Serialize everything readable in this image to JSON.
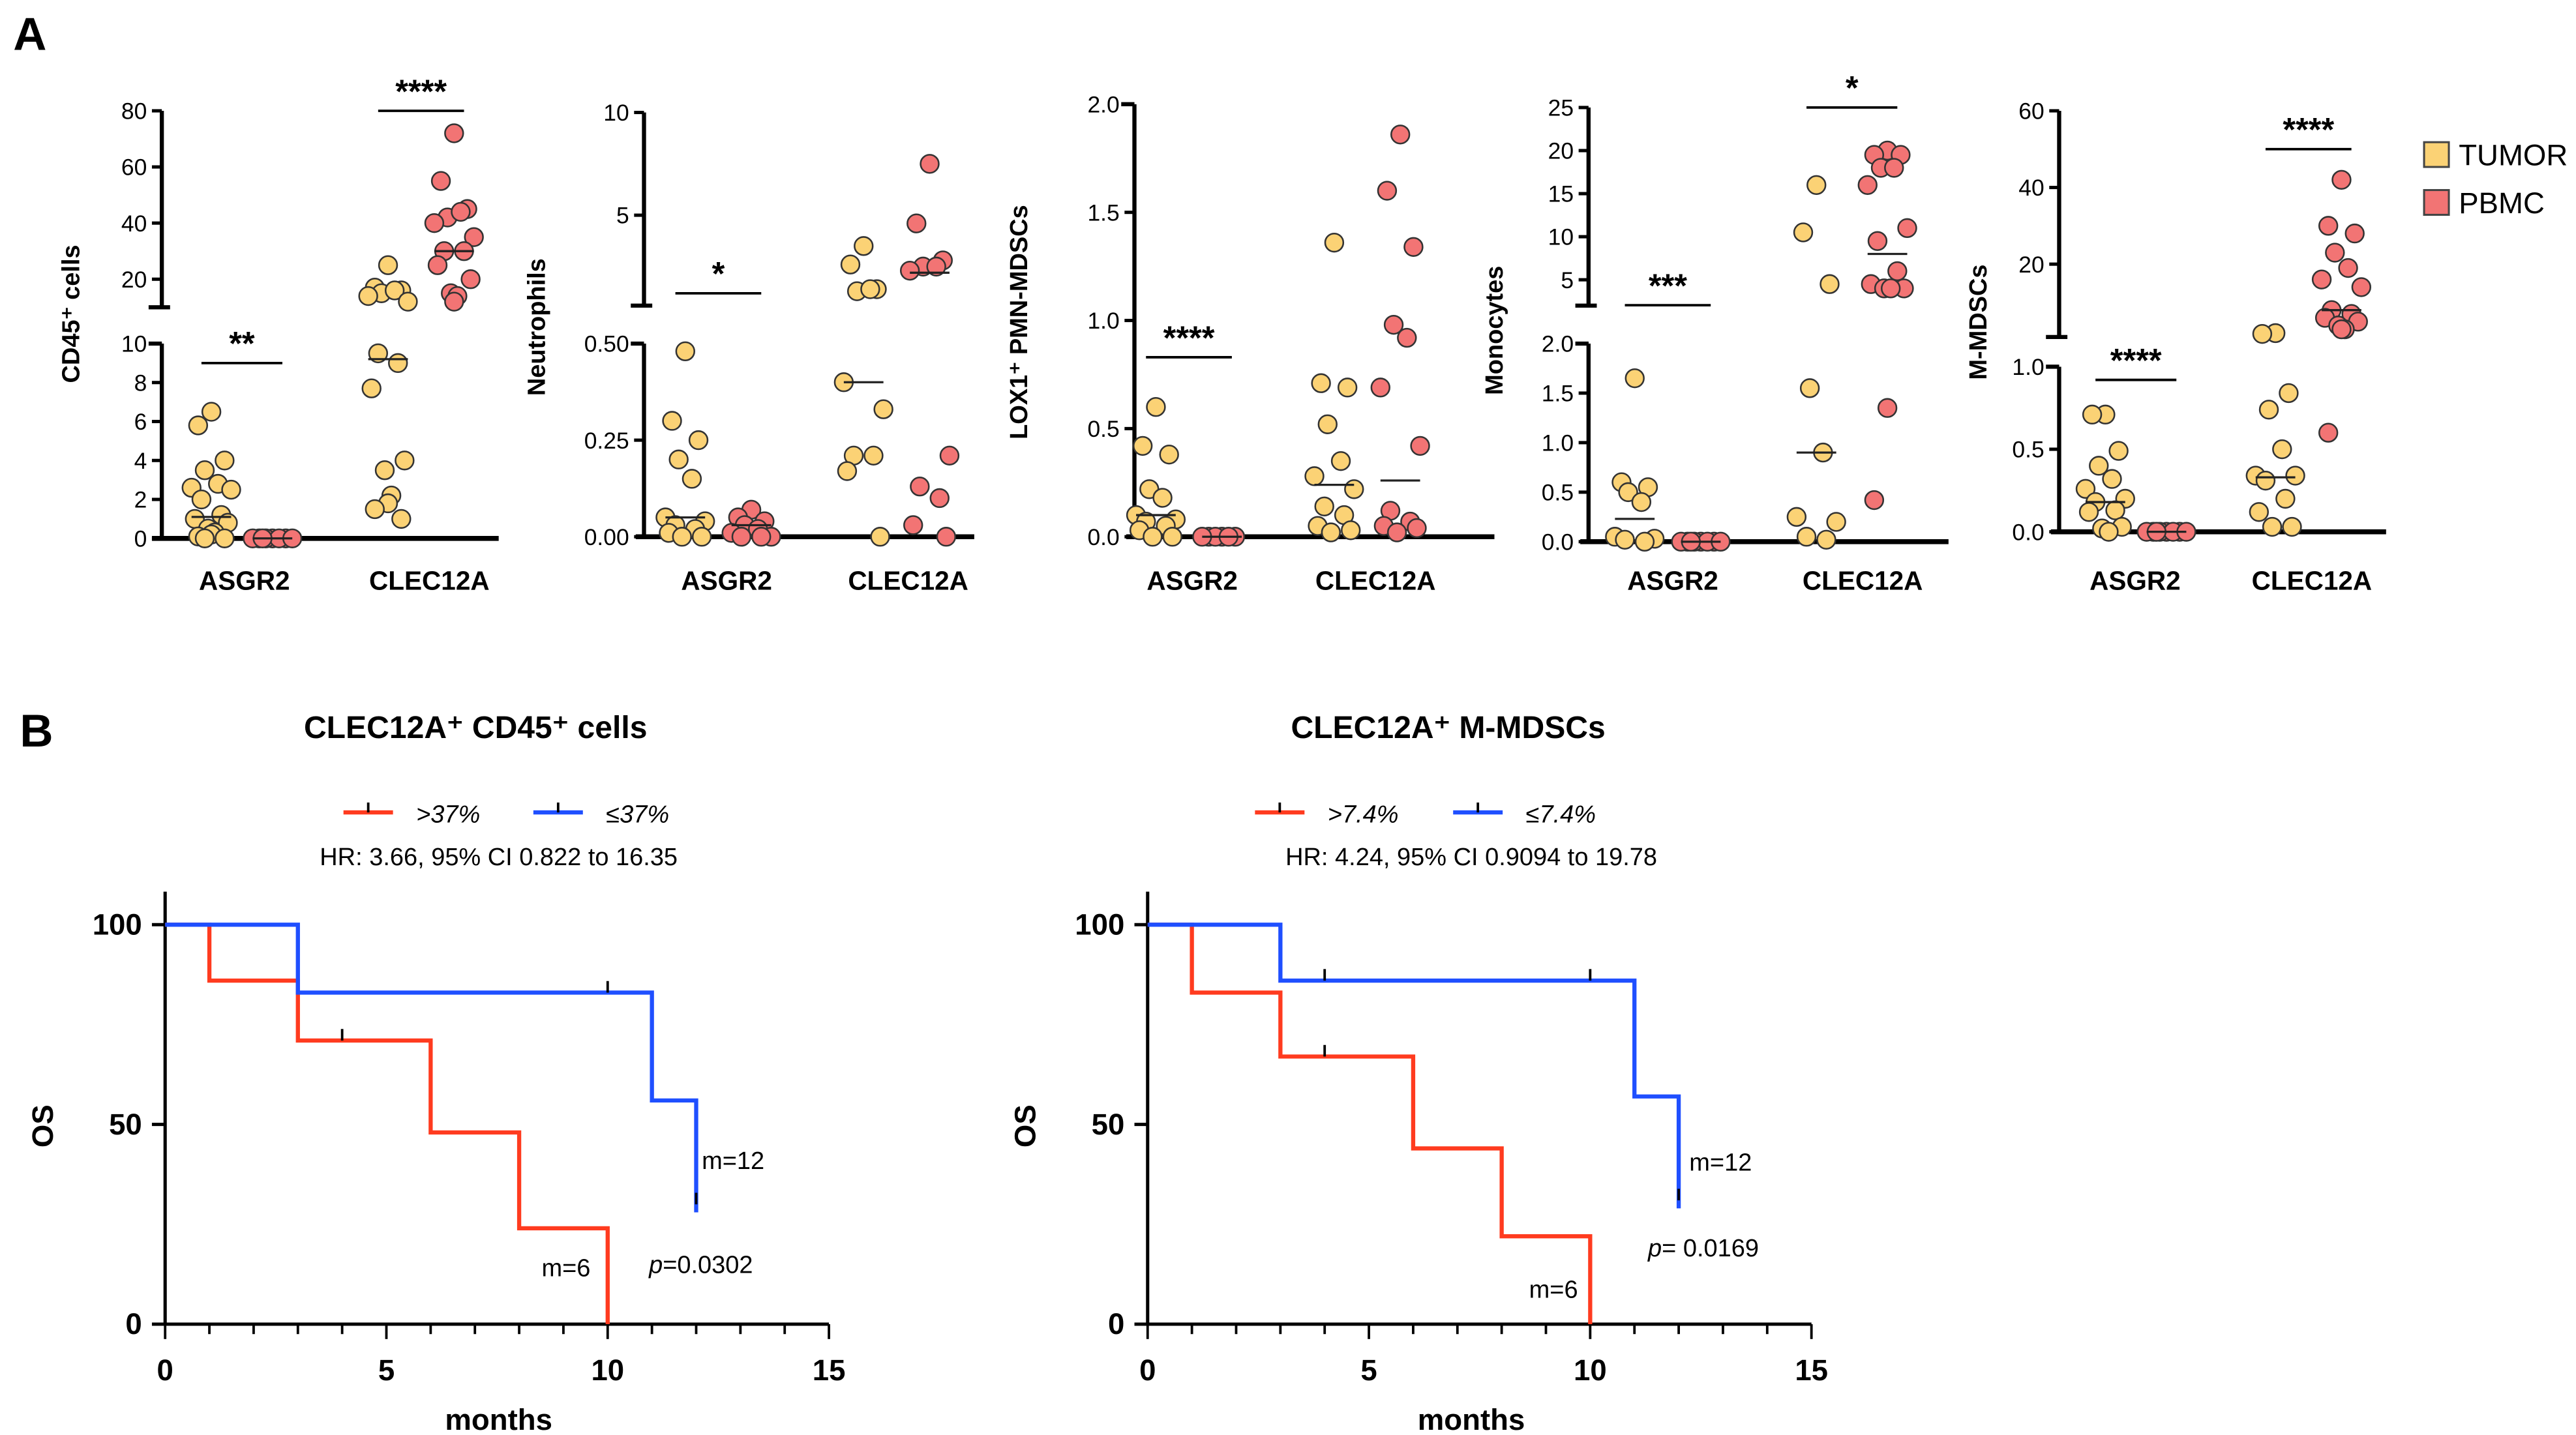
{
  "panel_labels": {
    "a": "A",
    "b": "B"
  },
  "colors": {
    "tumor": "#FBD275",
    "pbmc": "#F27474",
    "km_red": "#FF3B1F",
    "km_blue": "#1F4FFF"
  },
  "legend": {
    "tumor": "TUMOR",
    "pbmc": "PBMC"
  },
  "chart_data": [
    {
      "type": "scatter",
      "ylabel": "CD45⁺ cells",
      "categories": [
        "ASGR2",
        "CLEC12A"
      ],
      "lower_range": [
        0,
        10
      ],
      "upper_range": [
        10,
        80
      ],
      "lower_ticks": [
        "0",
        "2",
        "4",
        "6",
        "8",
        "10"
      ],
      "upper_ticks": [
        "20",
        "40",
        "60",
        "80"
      ],
      "groups": [
        {
          "category": "ASGR2",
          "series": "TUMOR",
          "values": [
            6.5,
            5.8,
            4.0,
            3.5,
            2.8,
            2.6,
            2.5,
            2.0,
            1.2,
            1.0,
            0.8,
            0.5,
            0.3,
            0.2,
            0.1,
            0,
            0
          ],
          "median": 1.1
        },
        {
          "category": "ASGR2",
          "series": "PBMC",
          "values": [
            0,
            0,
            0,
            0,
            0,
            0,
            0,
            0
          ],
          "median": 0
        },
        {
          "category": "CLEC12A",
          "series": "TUMOR",
          "values": [
            25,
            17,
            16,
            15,
            16,
            14,
            12,
            9.5,
            9.0,
            7.7,
            4.0,
            3.5,
            2.2,
            1.8,
            1.5,
            1.0
          ],
          "median": 9.2
        },
        {
          "category": "CLEC12A",
          "series": "PBMC",
          "values": [
            72,
            55,
            45,
            42,
            44,
            40,
            35,
            30,
            30,
            25,
            20,
            15,
            14,
            12
          ],
          "median": 30
        }
      ],
      "significance": [
        {
          "category": "ASGR2",
          "label": "**",
          "y": 9.0
        },
        {
          "category": "CLEC12A",
          "label": "****",
          "y": 80
        }
      ]
    },
    {
      "type": "scatter",
      "ylabel": "Neutrophils",
      "categories": [
        "ASGR2",
        "CLEC12A"
      ],
      "lower_range": [
        0,
        0.5
      ],
      "upper_range": [
        0.6,
        10
      ],
      "lower_ticks": [
        "0.00",
        "0.25",
        "0.50"
      ],
      "upper_ticks": [
        "5",
        "10"
      ],
      "groups": [
        {
          "category": "ASGR2",
          "series": "TUMOR",
          "values": [
            0.48,
            0.3,
            0.25,
            0.2,
            0.15,
            0.05,
            0.04,
            0.03,
            0.02,
            0.01,
            0,
            0
          ],
          "median": 0.05
        },
        {
          "category": "ASGR2",
          "series": "PBMC",
          "values": [
            0.07,
            0.05,
            0.04,
            0.03,
            0.02,
            0.01,
            0,
            0,
            0
          ],
          "median": 0.03
        },
        {
          "category": "CLEC12A",
          "series": "TUMOR",
          "values": [
            3.5,
            2.6,
            1.4,
            1.3,
            1.4,
            0.4,
            0.33,
            0.21,
            0.21,
            0.17,
            0
          ],
          "median": 0.4
        },
        {
          "category": "CLEC12A",
          "series": "PBMC",
          "values": [
            7.5,
            4.6,
            2.8,
            2.5,
            2.5,
            2.3,
            0.21,
            0.13,
            0.1,
            0.03,
            0
          ],
          "median": 2.2
        }
      ],
      "significance": [
        {
          "category": "ASGR2",
          "label": "*",
          "y": 1.2
        }
      ]
    },
    {
      "type": "scatter",
      "ylabel": "LOX1⁺ PMN-MDSCs",
      "categories": [
        "ASGR2",
        "CLEC12A"
      ],
      "lower_range": [
        0,
        2
      ],
      "upper_range": null,
      "lower_ticks": [
        "0.0",
        "0.5",
        "1.0",
        "1.5",
        "2.0"
      ],
      "upper_ticks": [],
      "groups": [
        {
          "category": "ASGR2",
          "series": "TUMOR",
          "values": [
            0.6,
            0.42,
            0.38,
            0.22,
            0.18,
            0.1,
            0.08,
            0.07,
            0.05,
            0.03,
            0,
            0
          ],
          "median": 0.1
        },
        {
          "category": "ASGR2",
          "series": "PBMC",
          "values": [
            0,
            0,
            0,
            0,
            0,
            0
          ],
          "median": 0
        },
        {
          "category": "CLEC12A",
          "series": "TUMOR",
          "values": [
            1.36,
            0.71,
            0.69,
            0.52,
            0.35,
            0.28,
            0.22,
            0.14,
            0.1,
            0.05,
            0.03,
            0.02
          ],
          "median": 0.24
        },
        {
          "category": "CLEC12A",
          "series": "PBMC",
          "values": [
            1.86,
            1.6,
            1.34,
            0.98,
            0.92,
            0.69,
            0.42,
            0.12,
            0.07,
            0.05,
            0.04,
            0.02
          ],
          "median": 0.26
        }
      ],
      "significance": [
        {
          "category": "ASGR2",
          "label": "****",
          "y": 0.83
        }
      ]
    },
    {
      "type": "scatter",
      "ylabel": "Monocytes",
      "categories": [
        "ASGR2",
        "CLEC12A"
      ],
      "lower_range": [
        0,
        2
      ],
      "upper_range": [
        2,
        25
      ],
      "lower_ticks": [
        "0.0",
        "0.5",
        "1.0",
        "1.5",
        "2.0"
      ],
      "upper_ticks": [
        "5",
        "10",
        "15",
        "20",
        "25"
      ],
      "groups": [
        {
          "category": "ASGR2",
          "series": "TUMOR",
          "values": [
            1.65,
            0.6,
            0.55,
            0.5,
            0.4,
            0.05,
            0.03,
            0.02,
            0
          ],
          "median": 0.23
        },
        {
          "category": "ASGR2",
          "series": "PBMC",
          "values": [
            0,
            0,
            0,
            0,
            0,
            0,
            0,
            0
          ],
          "median": 0
        },
        {
          "category": "CLEC12A",
          "series": "TUMOR",
          "values": [
            16,
            10.5,
            4.5,
            1.55,
            0.9,
            0.25,
            0.2,
            0.05,
            0.02
          ],
          "median": 0.9
        },
        {
          "category": "CLEC12A",
          "series": "PBMC",
          "values": [
            20,
            19.5,
            19.5,
            18,
            18,
            16,
            11,
            9.5,
            6,
            4.5,
            4,
            4,
            4,
            1.35,
            0.42
          ],
          "median": 8
        }
      ],
      "significance": [
        {
          "category": "ASGR2",
          "label": "***",
          "y": 2.05
        },
        {
          "category": "CLEC12A",
          "label": "*",
          "y": 25
        }
      ]
    },
    {
      "type": "scatter",
      "ylabel": "M-MDSCs",
      "categories": [
        "ASGR2",
        "CLEC12A"
      ],
      "lower_range": [
        0,
        1
      ],
      "upper_range": [
        1,
        60
      ],
      "lower_ticks": [
        "0.0",
        "0.5",
        "1.0"
      ],
      "upper_ticks": [
        "20",
        "40",
        "60"
      ],
      "groups": [
        {
          "category": "ASGR2",
          "series": "TUMOR",
          "values": [
            0.71,
            0.71,
            0.49,
            0.4,
            0.32,
            0.26,
            0.2,
            0.18,
            0.13,
            0.12,
            0.03,
            0.02,
            0
          ],
          "median": 0.18
        },
        {
          "category": "ASGR2",
          "series": "PBMC",
          "values": [
            0,
            0,
            0,
            0,
            0,
            0,
            0,
            0
          ],
          "median": 0
        },
        {
          "category": "CLEC12A",
          "series": "TUMOR",
          "values": [
            2,
            1.8,
            0.84,
            0.74,
            0.5,
            0.34,
            0.34,
            0.31,
            0.2,
            0.12,
            0.03,
            0.03
          ],
          "median": 0.33
        },
        {
          "category": "CLEC12A",
          "series": "PBMC",
          "values": [
            42,
            30,
            28,
            23,
            19,
            16,
            14,
            8,
            7,
            6,
            5,
            4,
            3,
            3,
            0.6
          ],
          "median": 8
        }
      ],
      "significance": [
        {
          "category": "ASGR2",
          "label": "****",
          "y": 0.92
        },
        {
          "category": "CLEC12A",
          "label": "****",
          "y": 50
        }
      ]
    },
    {
      "type": "line",
      "subtype": "kaplan-meier",
      "title": "CLEC12A⁺ CD45⁺ cells",
      "xlabel": "months",
      "ylabel": "OS",
      "xlim": [
        0,
        15
      ],
      "ylim": [
        0,
        100
      ],
      "x_ticks": [
        "0",
        "5",
        "10",
        "15"
      ],
      "y_ticks": [
        "0",
        "50",
        "100"
      ],
      "hr_text": "HR: 3.66, 95% CI 0.822 to 16.35",
      "p_text": {
        "p": "p",
        "rest": "=0.0302"
      },
      "series": [
        {
          "name": ">37%",
          "color": "red",
          "steps": [
            [
              1,
              86
            ],
            [
              3,
              71
            ],
            [
              6,
              48
            ],
            [
              8,
              24
            ],
            [
              10,
              0
            ]
          ],
          "censored": [
            [
              4,
              71
            ]
          ],
          "median_label": "m=6"
        },
        {
          "name": "≤37%",
          "color": "blue",
          "steps": [
            [
              3,
              83
            ],
            [
              11,
              56
            ],
            [
              12,
              28
            ]
          ],
          "censored": [
            [
              10,
              83
            ],
            [
              12,
              30
            ]
          ],
          "median_label": "m=12"
        }
      ]
    },
    {
      "type": "line",
      "subtype": "kaplan-meier",
      "title": "CLEC12A⁺ M-MDSCs",
      "xlabel": "months",
      "ylabel": "OS",
      "xlim": [
        0,
        15
      ],
      "ylim": [
        0,
        100
      ],
      "x_ticks": [
        "0",
        "5",
        "10",
        "15"
      ],
      "y_ticks": [
        "0",
        "50",
        "100"
      ],
      "hr_text": "HR: 4.24, 95% CI 0.9094 to 19.78",
      "p_text": {
        "p": "p",
        "rest": "= 0.0169"
      },
      "series": [
        {
          "name": ">7.4%",
          "color": "red",
          "steps": [
            [
              1,
              83
            ],
            [
              3,
              67
            ],
            [
              6,
              44
            ],
            [
              8,
              22
            ],
            [
              10,
              0
            ]
          ],
          "censored": [
            [
              4,
              67
            ]
          ],
          "median_label": "m=6"
        },
        {
          "name": "≤7.4%",
          "color": "blue",
          "steps": [
            [
              3,
              86
            ],
            [
              11,
              57
            ],
            [
              12,
              29
            ]
          ],
          "censored": [
            [
              4,
              86
            ],
            [
              10,
              86
            ],
            [
              12,
              31
            ]
          ],
          "median_label": "m=12"
        }
      ]
    }
  ]
}
